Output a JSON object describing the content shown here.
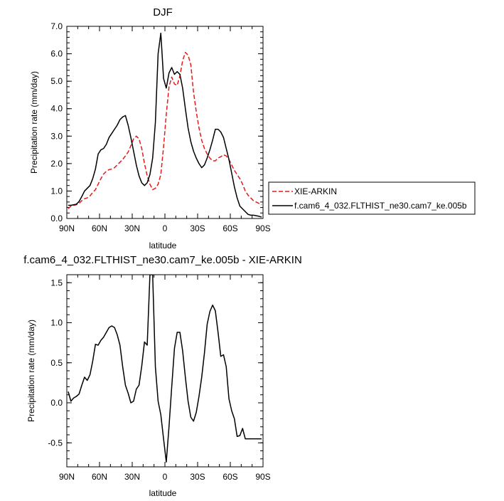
{
  "chart_data": [
    {
      "type": "line",
      "title": "DJF",
      "xlabel": "latitude",
      "ylabel": "Precipitation rate (mm/day)",
      "xlim": [
        90,
        -90
      ],
      "ylim": [
        0,
        7
      ],
      "x_ticks": [
        90,
        60,
        30,
        0,
        -30,
        -60,
        -90
      ],
      "x_tick_labels": [
        "90N",
        "60N",
        "30N",
        "0",
        "30S",
        "60S",
        "90S"
      ],
      "y_ticks": [
        0,
        1,
        2,
        3,
        4,
        5,
        6,
        7
      ],
      "y_tick_labels": [
        "0.0",
        "1.0",
        "2.0",
        "3.0",
        "4.0",
        "5.0",
        "6.0",
        "7.0"
      ],
      "legend_position": "right",
      "series": [
        {
          "name": "XIE-ARKIN",
          "color": "#e41a1c",
          "dash": "dashed",
          "x": [
            88.75,
            86.25,
            83.75,
            81.25,
            78.75,
            76.25,
            73.75,
            71.25,
            68.75,
            66.25,
            63.75,
            61.25,
            58.75,
            56.25,
            53.75,
            51.25,
            48.75,
            46.25,
            43.75,
            41.25,
            38.75,
            36.25,
            33.75,
            31.25,
            28.75,
            26.25,
            23.75,
            21.25,
            18.75,
            16.25,
            13.75,
            11.25,
            8.75,
            6.25,
            3.75,
            1.25,
            -1.25,
            -3.75,
            -6.25,
            -8.75,
            -11.25,
            -13.75,
            -16.25,
            -18.75,
            -21.25,
            -23.75,
            -26.25,
            -28.75,
            -31.25,
            -33.75,
            -36.25,
            -38.75,
            -41.25,
            -43.75,
            -46.25,
            -48.75,
            -51.25,
            -53.75,
            -56.25,
            -58.75,
            -61.25,
            -63.75,
            -66.25,
            -68.75,
            -71.25,
            -73.75,
            -76.25,
            -78.75,
            -81.25,
            -83.75,
            -86.25,
            -88.75
          ],
          "y": [
            0.35,
            0.45,
            0.48,
            0.5,
            0.55,
            0.65,
            0.72,
            0.75,
            0.82,
            0.95,
            1.05,
            1.25,
            1.45,
            1.62,
            1.72,
            1.78,
            1.8,
            1.85,
            1.95,
            2.05,
            2.15,
            2.28,
            2.42,
            2.65,
            2.9,
            3.0,
            2.9,
            2.55,
            2.0,
            1.55,
            1.25,
            1.05,
            1.1,
            1.25,
            1.6,
            2.6,
            3.8,
            4.8,
            5.15,
            4.9,
            4.85,
            5.2,
            5.75,
            6.05,
            5.95,
            5.6,
            4.6,
            3.9,
            3.3,
            2.85,
            2.55,
            2.35,
            2.2,
            2.1,
            2.1,
            2.2,
            2.25,
            2.32,
            2.28,
            2.15,
            1.95,
            1.75,
            1.6,
            1.45,
            1.25,
            1.0,
            0.85,
            0.75,
            0.65,
            0.6,
            0.55,
            0.5
          ]
        },
        {
          "name": "f.cam6_4_032.FLTHIST_ne30.cam7_ke.005b",
          "color": "#000000",
          "dash": "solid",
          "x": [
            88.75,
            86.25,
            83.75,
            81.25,
            78.75,
            76.25,
            73.75,
            71.25,
            68.75,
            66.25,
            63.75,
            61.25,
            58.75,
            56.25,
            53.75,
            51.25,
            48.75,
            46.25,
            43.75,
            41.25,
            38.75,
            36.25,
            33.75,
            31.25,
            28.75,
            26.25,
            23.75,
            21.25,
            18.75,
            16.25,
            13.75,
            11.25,
            8.75,
            6.25,
            3.75,
            1.25,
            -1.25,
            -3.75,
            -6.25,
            -8.75,
            -11.25,
            -13.75,
            -16.25,
            -18.75,
            -21.25,
            -23.75,
            -26.25,
            -28.75,
            -31.25,
            -33.75,
            -36.25,
            -38.75,
            -41.25,
            -43.75,
            -46.25,
            -48.75,
            -51.25,
            -53.75,
            -56.25,
            -58.75,
            -61.25,
            -63.75,
            -66.25,
            -68.75,
            -71.25,
            -73.75,
            -76.25,
            -78.75,
            -81.25,
            -83.75,
            -86.25,
            -88.75
          ],
          "y": [
            0.48,
            0.48,
            0.5,
            0.52,
            0.62,
            0.8,
            1.0,
            1.1,
            1.2,
            1.45,
            1.8,
            2.35,
            2.5,
            2.55,
            2.7,
            2.95,
            3.1,
            3.25,
            3.4,
            3.6,
            3.7,
            3.75,
            3.4,
            2.95,
            2.45,
            1.95,
            1.55,
            1.3,
            1.2,
            1.3,
            1.6,
            2.2,
            3.5,
            6.0,
            6.75,
            5.1,
            4.75,
            5.3,
            5.5,
            5.25,
            5.35,
            5.25,
            4.75,
            4.0,
            3.3,
            2.8,
            2.45,
            2.2,
            2.0,
            1.85,
            1.95,
            2.2,
            2.5,
            2.85,
            3.25,
            3.25,
            3.15,
            2.95,
            2.55,
            2.15,
            1.65,
            1.15,
            0.75,
            0.45,
            0.35,
            0.25,
            0.15,
            0.12,
            0.12,
            0.1,
            0.08,
            0.05
          ]
        }
      ]
    },
    {
      "type": "line",
      "title": "f.cam6_4_032.FLTHIST_ne30.cam7_ke.005b - XIE-ARKIN",
      "xlabel": "latitude",
      "ylabel": "Precipitation rate (mm/day)",
      "xlim": [
        90,
        -90
      ],
      "ylim": [
        -0.8,
        1.6
      ],
      "x_ticks": [
        90,
        60,
        30,
        0,
        -30,
        -60,
        -90
      ],
      "x_tick_labels": [
        "90N",
        "60N",
        "30N",
        "0",
        "30S",
        "60S",
        "90S"
      ],
      "y_ticks": [
        -0.5,
        0,
        0.5,
        1.0,
        1.5
      ],
      "y_tick_labels": [
        "-0.5",
        "0.0",
        "0.5",
        "1.0",
        "1.5"
      ],
      "series": [
        {
          "color": "#000000",
          "dash": "solid",
          "x": [
            88.75,
            86.25,
            83.75,
            81.25,
            78.75,
            76.25,
            73.75,
            71.25,
            68.75,
            66.25,
            63.75,
            61.25,
            58.75,
            56.25,
            53.75,
            51.25,
            48.75,
            46.25,
            43.75,
            41.25,
            38.75,
            36.25,
            33.75,
            31.25,
            28.75,
            26.25,
            23.75,
            21.25,
            18.75,
            16.25,
            13.75,
            11.25,
            8.75,
            6.25,
            3.75,
            1.25,
            -1.25,
            -3.75,
            -6.25,
            -8.75,
            -11.25,
            -13.75,
            -16.25,
            -18.75,
            -21.25,
            -23.75,
            -26.25,
            -28.75,
            -31.25,
            -33.75,
            -36.25,
            -38.75,
            -41.25,
            -43.75,
            -46.25,
            -48.75,
            -51.25,
            -53.75,
            -56.25,
            -58.75,
            -61.25,
            -63.75,
            -66.25,
            -68.75,
            -71.25,
            -73.75,
            -76.25,
            -78.75,
            -81.25,
            -83.75,
            -86.25,
            -88.75
          ],
          "y": [
            0.14,
            0.02,
            0.06,
            0.08,
            0.11,
            0.22,
            0.32,
            0.28,
            0.35,
            0.52,
            0.73,
            0.72,
            0.78,
            0.82,
            0.88,
            0.94,
            0.96,
            0.94,
            0.85,
            0.72,
            0.45,
            0.22,
            0.12,
            0.0,
            0.02,
            0.17,
            0.22,
            0.46,
            0.76,
            0.72,
            1.6,
            1.6,
            0.45,
            0.02,
            -0.15,
            -0.45,
            -0.74,
            -0.3,
            0.2,
            0.68,
            0.88,
            0.88,
            0.65,
            0.32,
            0.02,
            -0.18,
            -0.23,
            -0.12,
            0.08,
            0.32,
            0.62,
            0.98,
            1.14,
            1.22,
            1.15,
            0.88,
            0.58,
            0.6,
            0.45,
            0.05,
            -0.1,
            -0.2,
            -0.42,
            -0.41,
            -0.32,
            -0.45,
            -0.45,
            -0.45,
            -0.45,
            -0.45,
            -0.45,
            -0.45
          ]
        }
      ]
    }
  ]
}
